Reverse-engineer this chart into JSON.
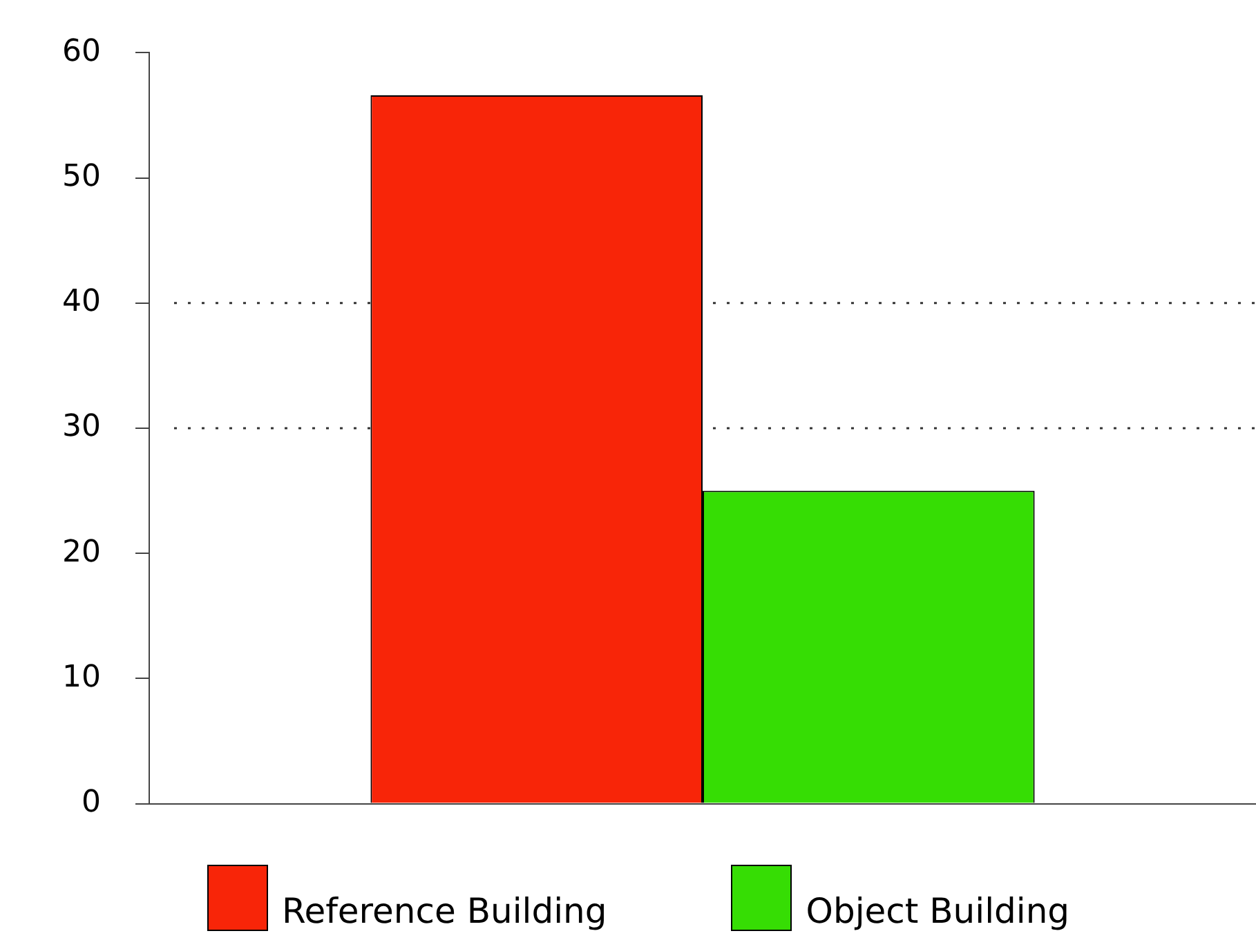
{
  "chart_data": {
    "type": "bar",
    "categories": [
      null
    ],
    "series": [
      {
        "name": "Reference Building",
        "color": "#f82508",
        "values": [
          56.6
        ]
      },
      {
        "name": "Object Building",
        "color": "#36dd04",
        "values": [
          25
        ]
      }
    ],
    "ylim": [
      0,
      60
    ],
    "yticks": [
      0,
      10,
      20,
      30,
      40,
      50,
      60
    ],
    "ref_lines": [
      {
        "axis": "y",
        "value": 30,
        "line_style": "dotted"
      },
      {
        "axis": "y",
        "value": 40,
        "line_style": "dotted"
      }
    ],
    "legend": "bottom"
  }
}
